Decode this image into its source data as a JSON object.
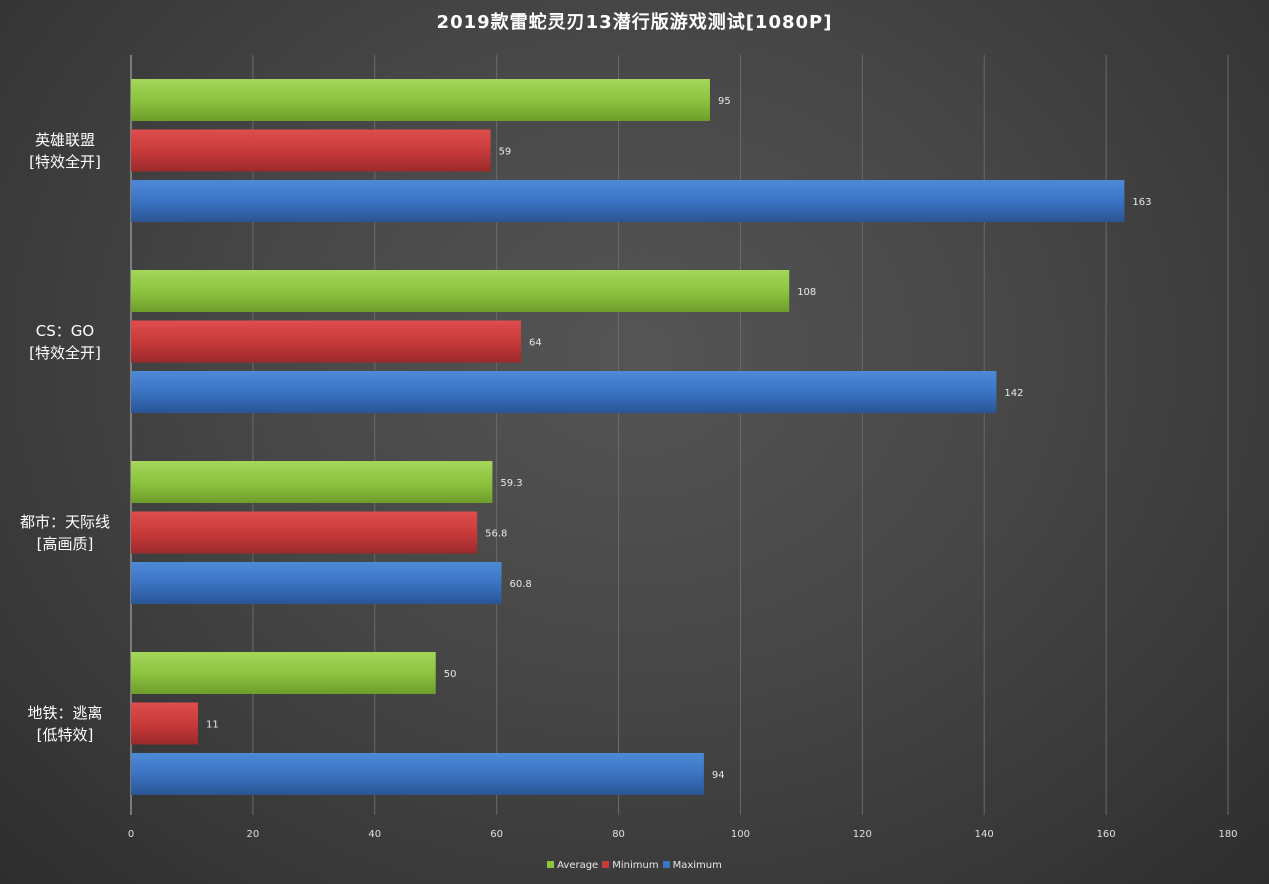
{
  "chart_data": {
    "type": "bar",
    "orientation": "horizontal",
    "title": "2019款雷蛇灵刃13潜行版游戏测试[1080P]",
    "categories": [
      [
        "英雄联盟",
        "[特效全开]"
      ],
      [
        "CS：GO",
        "[特效全开]"
      ],
      [
        "都市：天际线",
        "[高画质]"
      ],
      [
        "地铁：逃离",
        "[低特效]"
      ]
    ],
    "series": [
      {
        "name": "Average",
        "color": "#8dc43f",
        "values": [
          95,
          108,
          59.3,
          50
        ]
      },
      {
        "name": "Minimum",
        "color": "#c83a3a",
        "values": [
          59,
          64,
          56.8,
          11
        ]
      },
      {
        "name": "Maximum",
        "color": "#3a73c2",
        "values": [
          163,
          142,
          60.8,
          94
        ]
      }
    ],
    "xlim": [
      0,
      180
    ],
    "xticks": [
      "0",
      "20",
      "40",
      "60",
      "80",
      "100",
      "120",
      "140",
      "160",
      "180"
    ],
    "grid": true,
    "legend_position": "bottom",
    "xlabel": "",
    "ylabel": ""
  }
}
